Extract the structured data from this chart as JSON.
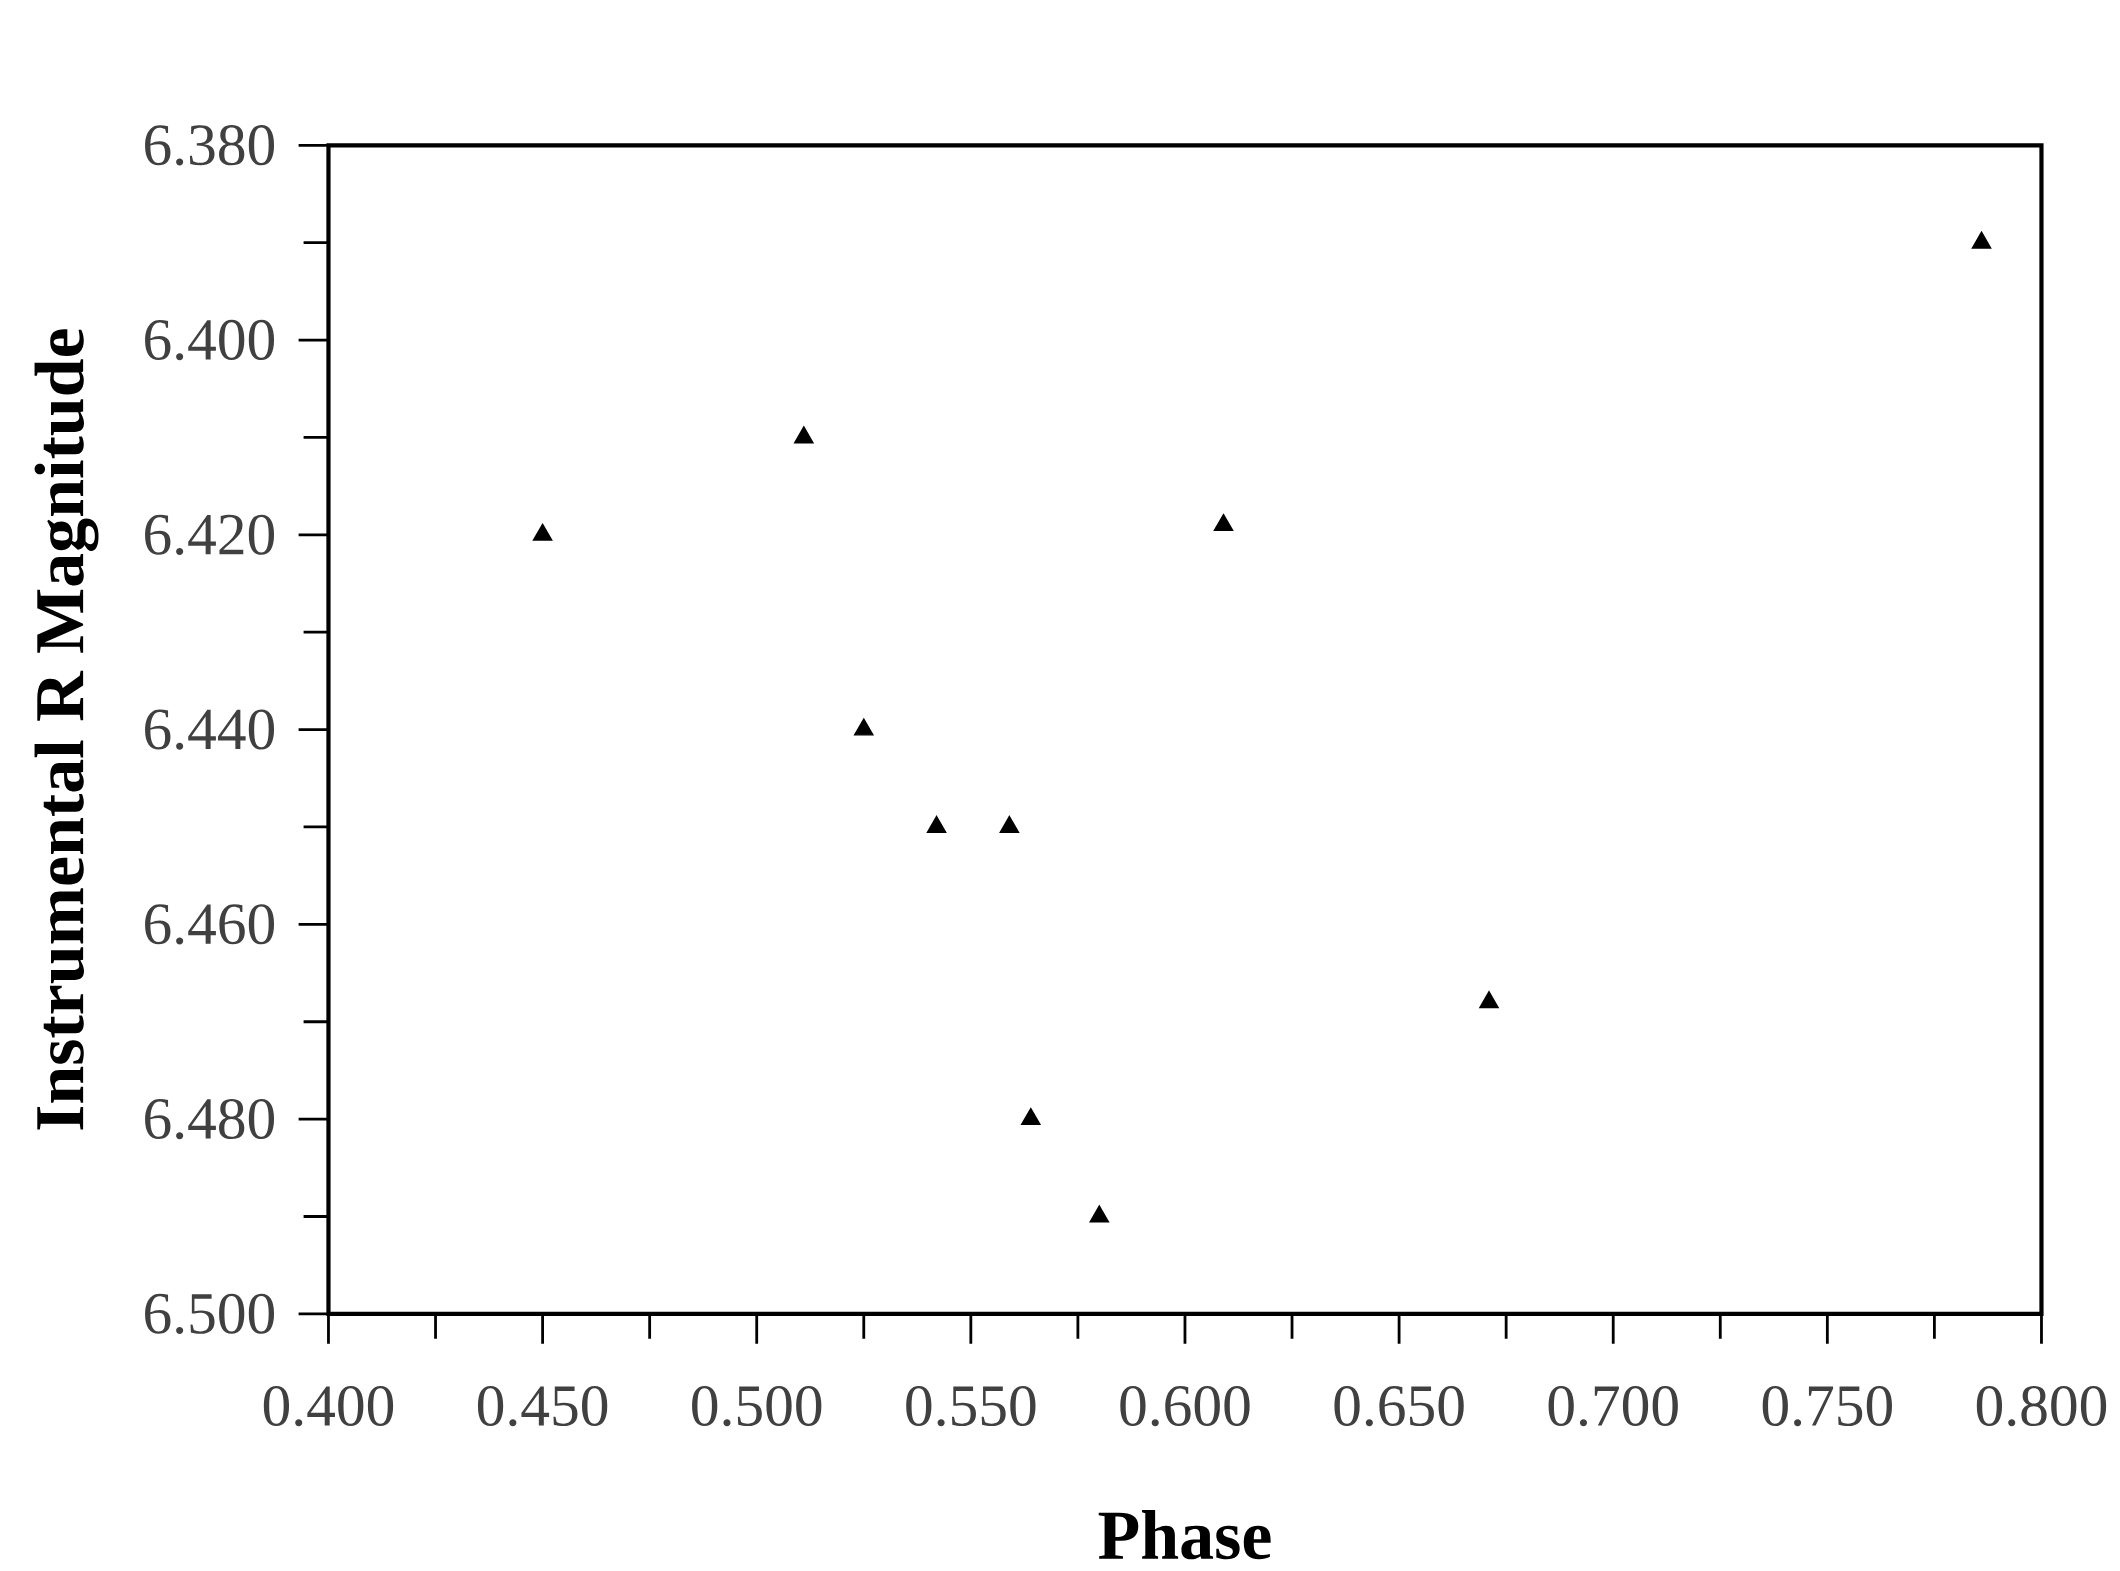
{
  "chart_data": {
    "type": "scatter",
    "xlabel": "Phase",
    "ylabel": "Instrumental R Magnitude",
    "x": [
      0.45,
      0.511,
      0.525,
      0.542,
      0.559,
      0.564,
      0.58,
      0.609,
      0.671,
      0.786
    ],
    "values": [
      6.42,
      6.41,
      6.44,
      6.45,
      6.45,
      6.48,
      6.49,
      6.419,
      6.468,
      6.39
    ],
    "color": "#000000",
    "marker": "triangle",
    "xlim": [
      0.4,
      0.8
    ],
    "ylim": [
      6.5,
      6.38
    ],
    "xticks": [
      {
        "value": 0.4,
        "label": "0.400"
      },
      {
        "value": 0.45,
        "label": "0.450"
      },
      {
        "value": 0.5,
        "label": "0.500"
      },
      {
        "value": 0.55,
        "label": "0.550"
      },
      {
        "value": 0.6,
        "label": "0.600"
      },
      {
        "value": 0.65,
        "label": "0.650"
      },
      {
        "value": 0.7,
        "label": "0.700"
      },
      {
        "value": 0.75,
        "label": "0.750"
      },
      {
        "value": 0.8,
        "label": "0.800"
      }
    ],
    "yticks": [
      {
        "value": 6.38,
        "label": "6.380"
      },
      {
        "value": 6.4,
        "label": "6.400"
      },
      {
        "value": 6.42,
        "label": "6.420"
      },
      {
        "value": 6.44,
        "label": "6.440"
      },
      {
        "value": 6.46,
        "label": "6.460"
      },
      {
        "value": 6.48,
        "label": "6.480"
      },
      {
        "value": 6.5,
        "label": "6.500"
      }
    ],
    "grid": false
  }
}
